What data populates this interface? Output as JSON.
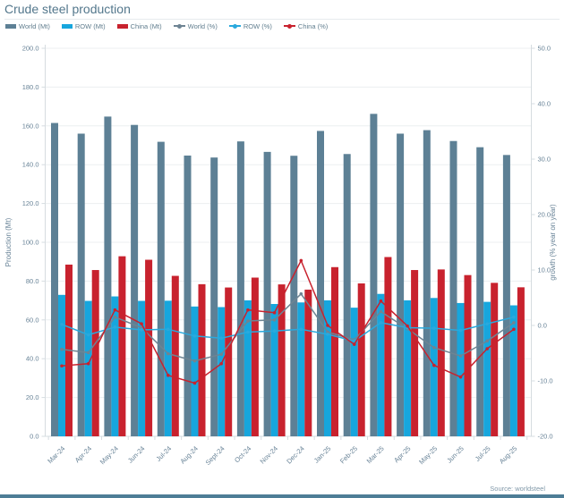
{
  "title": "Crude steel production",
  "source": "Source: worldsteel",
  "colors": {
    "title_text": "#53778c",
    "world_bar": "#5d8095",
    "row_bar": "#17a6dd",
    "china_bar": "#c8222e",
    "world_line": "#6e8493",
    "row_line": "#2aa9dd",
    "china_line": "#c8222e",
    "grid": "#eceff1",
    "axis_line": "#d6dce0",
    "tick_text": "#688397",
    "source_text": "#8098a8",
    "footer_bar": "#4d7d96"
  },
  "legend": [
    {
      "label": "World (Mt)",
      "swatch": "bar",
      "color": "#5d8095"
    },
    {
      "label": "ROW (Mt)",
      "swatch": "bar",
      "color": "#17a6dd"
    },
    {
      "label": "China (Mt)",
      "swatch": "bar",
      "color": "#c8222e"
    },
    {
      "label": "World (%)",
      "swatch": "line",
      "color": "#6e8493"
    },
    {
      "label": "ROW (%)",
      "swatch": "line",
      "color": "#2aa9dd"
    },
    {
      "label": "China (%)",
      "swatch": "line",
      "color": "#c8222e"
    }
  ],
  "chart_data": {
    "type": "combo-bar-line",
    "title": "Crude steel production",
    "categories": [
      "Mar-24",
      "Apr-24",
      "May-24",
      "Jun-24",
      "Jul-24",
      "Aug-24",
      "Sept-24",
      "Oct-24",
      "Nov-24",
      "Dec-24",
      "Jan-25",
      "Feb-25",
      "Mar-25",
      "Apr-25",
      "May-25",
      "Jun-25",
      "Jul-25",
      "Aug-25"
    ],
    "series": [
      {
        "name": "World (Mt)",
        "type": "bar",
        "axis": "left",
        "color": "#5d8095",
        "values": [
          161.5,
          156.0,
          164.8,
          160.5,
          151.8,
          144.7,
          143.7,
          152.0,
          146.6,
          144.6,
          157.4,
          145.5,
          166.2,
          156.0,
          157.8,
          152.2,
          149.0,
          145.0
        ]
      },
      {
        "name": "ROW (Mt)",
        "type": "bar",
        "axis": "left",
        "color": "#17a6dd",
        "values": [
          72.9,
          69.8,
          72.1,
          69.8,
          69.9,
          66.9,
          66.6,
          70.1,
          68.2,
          69.0,
          70.1,
          66.3,
          73.4,
          70.1,
          71.3,
          68.7,
          69.3,
          67.5
        ]
      },
      {
        "name": "China (Mt)",
        "type": "bar",
        "axis": "left",
        "color": "#c8222e",
        "values": [
          88.5,
          85.7,
          92.8,
          91.0,
          82.7,
          78.4,
          76.7,
          81.8,
          78.3,
          75.6,
          87.2,
          78.8,
          92.4,
          85.7,
          86.0,
          83.1,
          79.1,
          76.8
        ]
      },
      {
        "name": "World (%)",
        "type": "line",
        "axis": "right",
        "color": "#6e8493",
        "values": [
          -4.3,
          -4.9,
          1.5,
          -0.4,
          -5.1,
          -6.4,
          -5.2,
          0.8,
          1.0,
          5.7,
          -1.2,
          -2.6,
          2.5,
          -0.6,
          -4.0,
          -5.5,
          -2.8,
          0.5
        ]
      },
      {
        "name": "ROW (%)",
        "type": "line",
        "axis": "right",
        "color": "#2aa9dd",
        "values": [
          0.2,
          -1.7,
          -0.3,
          -0.8,
          -0.7,
          -1.9,
          -2.3,
          -1.2,
          -1.0,
          -0.7,
          -1.6,
          -2.8,
          0.5,
          -0.4,
          -0.5,
          -0.9,
          0.3,
          1.5
        ]
      },
      {
        "name": "China (%)",
        "type": "line",
        "axis": "right",
        "color": "#c8222e",
        "values": [
          -7.3,
          -6.9,
          2.8,
          0.3,
          -9.0,
          -10.4,
          -6.9,
          2.8,
          2.3,
          11.7,
          0.0,
          -3.4,
          4.4,
          -0.1,
          -7.2,
          -9.3,
          -4.2,
          -0.7
        ]
      }
    ],
    "left_axis": {
      "label": "Production (Mt)",
      "min": 0,
      "max": 200,
      "step": 20
    },
    "right_axis": {
      "label": "growth (% year on year)",
      "min": -20,
      "max": 50,
      "step": 10
    },
    "grid": true,
    "legend_position": "top"
  }
}
